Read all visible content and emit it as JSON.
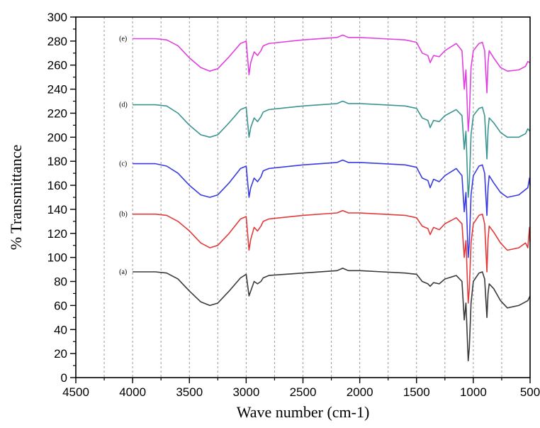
{
  "chart_data": {
    "type": "line",
    "title": "",
    "xlabel": "Wave number (cm-1)",
    "ylabel": "% Transmittance",
    "xlim": [
      4500,
      500
    ],
    "ylim": [
      0,
      300
    ],
    "x_reversed": true,
    "x_ticks": [
      4500,
      4000,
      3500,
      3000,
      2500,
      2000,
      1500,
      1000,
      500
    ],
    "y_ticks": [
      0,
      20,
      40,
      60,
      80,
      100,
      120,
      140,
      160,
      180,
      200,
      220,
      240,
      260,
      280,
      300
    ],
    "grid": "vertical dashed",
    "legend": "none",
    "series": [
      {
        "name": "(a)",
        "color": "#3a3a3a",
        "points": [
          [
            4000,
            88
          ],
          [
            3800,
            88
          ],
          [
            3700,
            87
          ],
          [
            3600,
            82
          ],
          [
            3500,
            72
          ],
          [
            3400,
            63
          ],
          [
            3320,
            60
          ],
          [
            3250,
            62
          ],
          [
            3150,
            72
          ],
          [
            3050,
            83
          ],
          [
            3000,
            86
          ],
          [
            2975,
            68
          ],
          [
            2960,
            72
          ],
          [
            2930,
            80
          ],
          [
            2900,
            78
          ],
          [
            2870,
            80
          ],
          [
            2850,
            83
          ],
          [
            2800,
            85
          ],
          [
            2500,
            87
          ],
          [
            2200,
            89
          ],
          [
            2150,
            91
          ],
          [
            2100,
            89
          ],
          [
            2000,
            89
          ],
          [
            1800,
            88
          ],
          [
            1600,
            87
          ],
          [
            1500,
            86
          ],
          [
            1450,
            80
          ],
          [
            1400,
            78
          ],
          [
            1380,
            76
          ],
          [
            1350,
            79
          ],
          [
            1300,
            78
          ],
          [
            1250,
            82
          ],
          [
            1150,
            85
          ],
          [
            1100,
            80
          ],
          [
            1080,
            48
          ],
          [
            1065,
            62
          ],
          [
            1045,
            14
          ],
          [
            1035,
            25
          ],
          [
            1020,
            62
          ],
          [
            1000,
            80
          ],
          [
            950,
            87
          ],
          [
            920,
            88
          ],
          [
            900,
            82
          ],
          [
            880,
            50
          ],
          [
            870,
            70
          ],
          [
            860,
            78
          ],
          [
            820,
            74
          ],
          [
            760,
            64
          ],
          [
            700,
            58
          ],
          [
            600,
            60
          ],
          [
            520,
            64
          ],
          [
            500,
            68
          ]
        ]
      },
      {
        "name": "(b)",
        "color": "#e03a3a",
        "points": [
          [
            4000,
            136
          ],
          [
            3800,
            136
          ],
          [
            3700,
            135
          ],
          [
            3600,
            130
          ],
          [
            3500,
            122
          ],
          [
            3400,
            112
          ],
          [
            3320,
            108
          ],
          [
            3250,
            110
          ],
          [
            3150,
            120
          ],
          [
            3050,
            132
          ],
          [
            3000,
            134
          ],
          [
            2975,
            106
          ],
          [
            2960,
            115
          ],
          [
            2930,
            125
          ],
          [
            2900,
            122
          ],
          [
            2870,
            126
          ],
          [
            2850,
            130
          ],
          [
            2800,
            132
          ],
          [
            2500,
            135
          ],
          [
            2200,
            137
          ],
          [
            2150,
            139
          ],
          [
            2100,
            137
          ],
          [
            2000,
            137
          ],
          [
            1800,
            136
          ],
          [
            1600,
            135
          ],
          [
            1500,
            133
          ],
          [
            1450,
            126
          ],
          [
            1400,
            124
          ],
          [
            1380,
            119
          ],
          [
            1350,
            125
          ],
          [
            1300,
            123
          ],
          [
            1250,
            128
          ],
          [
            1150,
            133
          ],
          [
            1100,
            128
          ],
          [
            1080,
            100
          ],
          [
            1065,
            114
          ],
          [
            1045,
            62
          ],
          [
            1035,
            74
          ],
          [
            1020,
            112
          ],
          [
            1000,
            128
          ],
          [
            950,
            135
          ],
          [
            920,
            136
          ],
          [
            900,
            128
          ],
          [
            880,
            88
          ],
          [
            870,
            115
          ],
          [
            860,
            126
          ],
          [
            820,
            121
          ],
          [
            760,
            112
          ],
          [
            700,
            106
          ],
          [
            600,
            108
          ],
          [
            540,
            112
          ],
          [
            520,
            108
          ],
          [
            505,
            125
          ],
          [
            500,
            113
          ]
        ]
      },
      {
        "name": "(c)",
        "color": "#3a3ae0",
        "points": [
          [
            4000,
            178
          ],
          [
            3800,
            178
          ],
          [
            3700,
            176
          ],
          [
            3600,
            170
          ],
          [
            3500,
            160
          ],
          [
            3400,
            152
          ],
          [
            3320,
            150
          ],
          [
            3250,
            152
          ],
          [
            3150,
            162
          ],
          [
            3050,
            174
          ],
          [
            3000,
            176
          ],
          [
            2975,
            150
          ],
          [
            2960,
            158
          ],
          [
            2930,
            166
          ],
          [
            2900,
            163
          ],
          [
            2870,
            167
          ],
          [
            2850,
            172
          ],
          [
            2800,
            174
          ],
          [
            2500,
            177
          ],
          [
            2200,
            179
          ],
          [
            2150,
            181
          ],
          [
            2100,
            179
          ],
          [
            2000,
            179
          ],
          [
            1800,
            178
          ],
          [
            1600,
            177
          ],
          [
            1500,
            175
          ],
          [
            1450,
            166
          ],
          [
            1400,
            164
          ],
          [
            1380,
            158
          ],
          [
            1350,
            165
          ],
          [
            1300,
            163
          ],
          [
            1250,
            168
          ],
          [
            1150,
            174
          ],
          [
            1100,
            168
          ],
          [
            1080,
            138
          ],
          [
            1065,
            154
          ],
          [
            1045,
            100
          ],
          [
            1035,
            112
          ],
          [
            1020,
            152
          ],
          [
            1000,
            168
          ],
          [
            950,
            176
          ],
          [
            920,
            177
          ],
          [
            900,
            170
          ],
          [
            880,
            135
          ],
          [
            870,
            158
          ],
          [
            860,
            168
          ],
          [
            820,
            162
          ],
          [
            760,
            154
          ],
          [
            700,
            150
          ],
          [
            600,
            152
          ],
          [
            520,
            158
          ],
          [
            505,
            166
          ],
          [
            500,
            160
          ]
        ]
      },
      {
        "name": "(d)",
        "color": "#3a9590",
        "points": [
          [
            4000,
            227
          ],
          [
            3800,
            227
          ],
          [
            3700,
            226
          ],
          [
            3600,
            220
          ],
          [
            3500,
            210
          ],
          [
            3400,
            202
          ],
          [
            3320,
            200
          ],
          [
            3250,
            202
          ],
          [
            3150,
            212
          ],
          [
            3050,
            223
          ],
          [
            3000,
            225
          ],
          [
            2975,
            200
          ],
          [
            2960,
            208
          ],
          [
            2930,
            216
          ],
          [
            2900,
            213
          ],
          [
            2870,
            217
          ],
          [
            2850,
            221
          ],
          [
            2800,
            223
          ],
          [
            2500,
            226
          ],
          [
            2200,
            228
          ],
          [
            2150,
            230
          ],
          [
            2100,
            228
          ],
          [
            2000,
            228
          ],
          [
            1800,
            227
          ],
          [
            1600,
            226
          ],
          [
            1500,
            224
          ],
          [
            1450,
            216
          ],
          [
            1400,
            214
          ],
          [
            1380,
            208
          ],
          [
            1350,
            214
          ],
          [
            1300,
            213
          ],
          [
            1250,
            218
          ],
          [
            1150,
            223
          ],
          [
            1100,
            218
          ],
          [
            1080,
            190
          ],
          [
            1065,
            205
          ],
          [
            1045,
            150
          ],
          [
            1035,
            162
          ],
          [
            1020,
            202
          ],
          [
            1000,
            218
          ],
          [
            950,
            224
          ],
          [
            920,
            225
          ],
          [
            900,
            218
          ],
          [
            880,
            182
          ],
          [
            870,
            206
          ],
          [
            860,
            216
          ],
          [
            820,
            212
          ],
          [
            760,
            204
          ],
          [
            700,
            200
          ],
          [
            600,
            200
          ],
          [
            540,
            203
          ],
          [
            520,
            207
          ],
          [
            500,
            205
          ]
        ]
      },
      {
        "name": "(e)",
        "color": "#e040e0",
        "points": [
          [
            4000,
            282
          ],
          [
            3800,
            282
          ],
          [
            3700,
            281
          ],
          [
            3600,
            276
          ],
          [
            3500,
            266
          ],
          [
            3400,
            258
          ],
          [
            3320,
            255
          ],
          [
            3250,
            257
          ],
          [
            3150,
            267
          ],
          [
            3050,
            278
          ],
          [
            3000,
            280
          ],
          [
            2975,
            252
          ],
          [
            2960,
            262
          ],
          [
            2930,
            271
          ],
          [
            2900,
            268
          ],
          [
            2870,
            272
          ],
          [
            2850,
            276
          ],
          [
            2800,
            278
          ],
          [
            2500,
            281
          ],
          [
            2200,
            283
          ],
          [
            2150,
            285
          ],
          [
            2100,
            283
          ],
          [
            2000,
            283
          ],
          [
            1800,
            282
          ],
          [
            1600,
            281
          ],
          [
            1500,
            279
          ],
          [
            1450,
            270
          ],
          [
            1400,
            268
          ],
          [
            1380,
            262
          ],
          [
            1350,
            268
          ],
          [
            1300,
            267
          ],
          [
            1250,
            272
          ],
          [
            1150,
            278
          ],
          [
            1100,
            272
          ],
          [
            1080,
            240
          ],
          [
            1065,
            256
          ],
          [
            1045,
            205
          ],
          [
            1035,
            218
          ],
          [
            1020,
            258
          ],
          [
            1000,
            272
          ],
          [
            950,
            278
          ],
          [
            920,
            279
          ],
          [
            900,
            272
          ],
          [
            880,
            237
          ],
          [
            870,
            262
          ],
          [
            860,
            272
          ],
          [
            820,
            266
          ],
          [
            760,
            258
          ],
          [
            700,
            255
          ],
          [
            600,
            256
          ],
          [
            540,
            259
          ],
          [
            520,
            263
          ],
          [
            500,
            262
          ]
        ]
      }
    ]
  }
}
